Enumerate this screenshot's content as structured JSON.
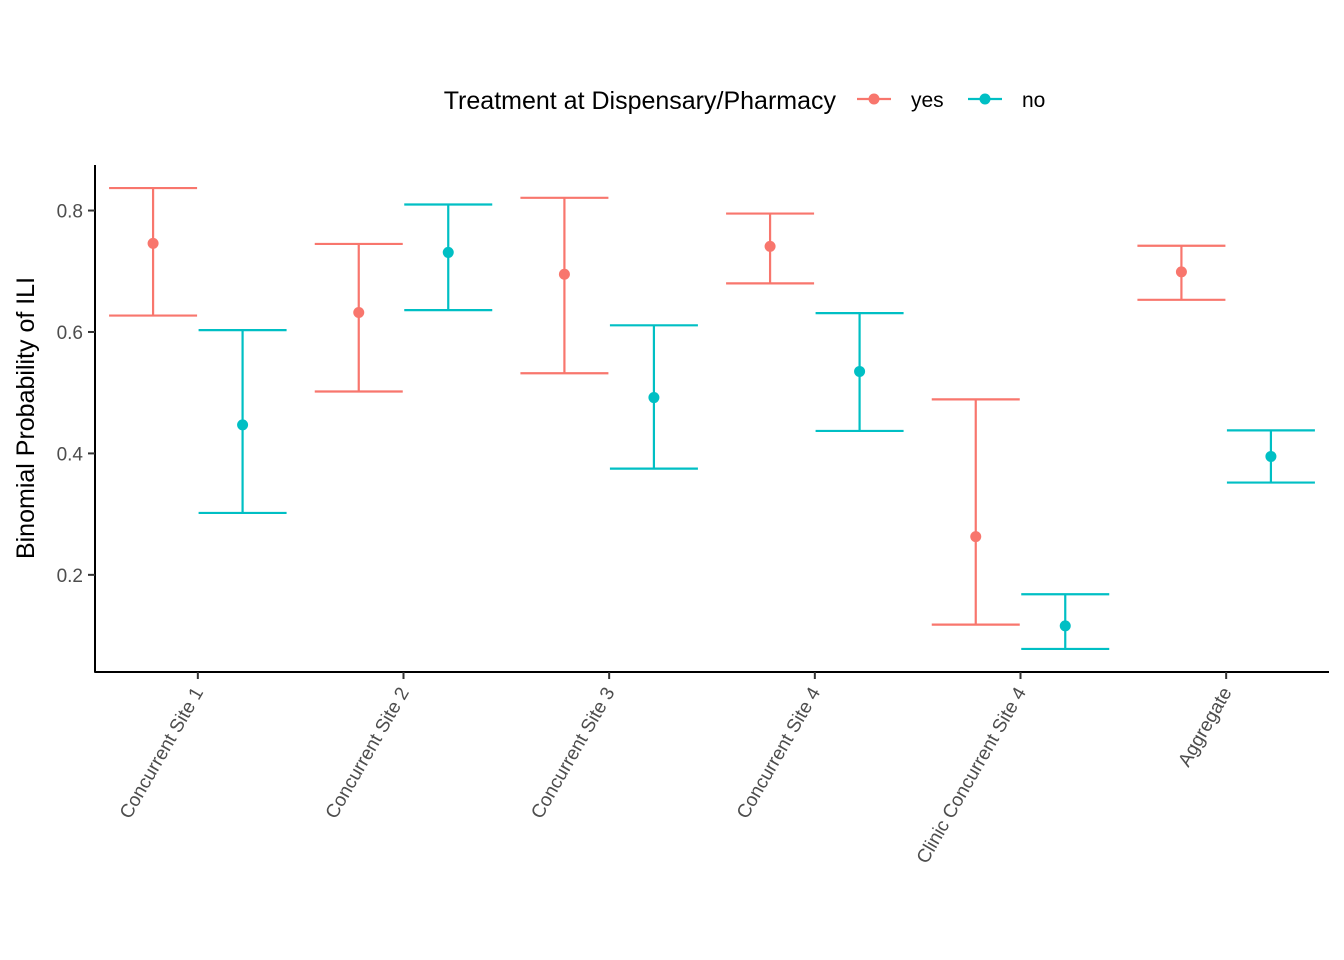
{
  "chart_data": {
    "type": "errorbar",
    "title": "",
    "xlabel": "",
    "ylabel": "Binomial Probability of ILI",
    "ylim": [
      0.04,
      0.875
    ],
    "yticks": [
      0.2,
      0.4,
      0.6,
      0.8
    ],
    "ytick_labels": [
      "0.2",
      "0.4",
      "0.6",
      "0.8"
    ],
    "grid": false,
    "categories": [
      "Concurrent Site 1",
      "Concurrent Site 2",
      "Concurrent Site 3",
      "Concurrent Site 4",
      "Clinic Concurrent Site 4",
      "Aggregate"
    ],
    "legend": {
      "title": "Treatment at Dispensary/Pharmacy",
      "placement": "top"
    },
    "series": [
      {
        "name": "yes",
        "color": "#F8766D",
        "values": [
          0.746,
          0.632,
          0.695,
          0.741,
          0.263,
          0.699
        ],
        "lower": [
          0.627,
          0.502,
          0.532,
          0.68,
          0.118,
          0.653
        ],
        "upper": [
          0.837,
          0.745,
          0.821,
          0.795,
          0.489,
          0.742
        ]
      },
      {
        "name": "no",
        "color": "#00BFC4",
        "values": [
          0.447,
          0.731,
          0.492,
          0.535,
          0.116,
          0.395
        ],
        "lower": [
          0.302,
          0.636,
          0.375,
          0.437,
          0.078,
          0.352
        ],
        "upper": [
          0.603,
          0.81,
          0.611,
          0.631,
          0.168,
          0.438
        ]
      }
    ]
  }
}
